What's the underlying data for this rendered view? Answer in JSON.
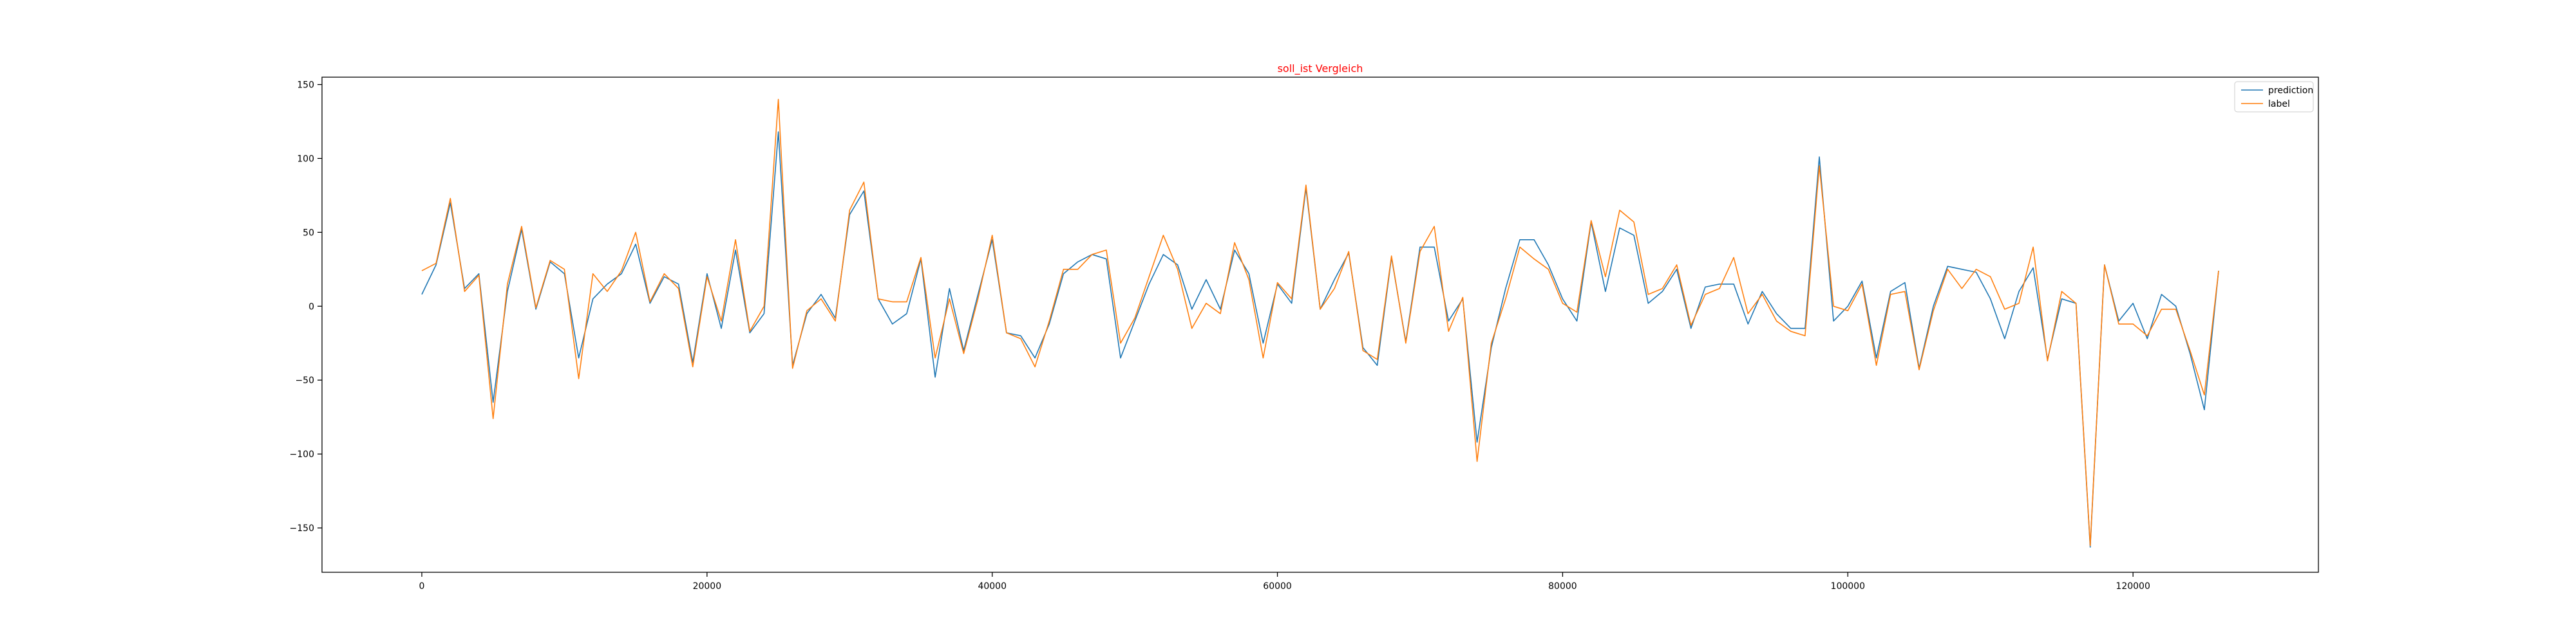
{
  "chart_data": {
    "type": "line",
    "title": "soll_ist Vergleich",
    "title_color": "#ff0000",
    "xlabel": "",
    "ylabel": "",
    "xlim": [
      -7000,
      133000
    ],
    "ylim": [
      -180,
      155
    ],
    "xticks": [
      0,
      20000,
      40000,
      60000,
      80000,
      100000,
      120000
    ],
    "xtick_labels": [
      "0",
      "20000",
      "40000",
      "60000",
      "80000",
      "100000",
      "120000"
    ],
    "yticks": [
      150,
      100,
      50,
      0,
      -50,
      -100,
      -150
    ],
    "ytick_labels": [
      "150",
      "100",
      "50",
      "0",
      "−50",
      "−100",
      "−150"
    ],
    "grid": false,
    "legend_position": "top-right",
    "x_start": 0,
    "x_step": 1000,
    "series": [
      {
        "name": "prediction",
        "color": "#1f77b4",
        "values": [
          8,
          28,
          70,
          12,
          22,
          -65,
          10,
          52,
          -2,
          30,
          22,
          -35,
          5,
          15,
          22,
          42,
          2,
          20,
          15,
          -38,
          22,
          -15,
          38,
          -18,
          -5,
          118,
          -40,
          -5,
          8,
          -8,
          62,
          78,
          5,
          -12,
          -5,
          32,
          -48,
          12,
          -30,
          8,
          45,
          -18,
          -20,
          -35,
          -12,
          22,
          30,
          35,
          32,
          -35,
          -10,
          15,
          35,
          28,
          -2,
          18,
          -2,
          38,
          22,
          -25,
          15,
          2,
          80,
          -2,
          18,
          36,
          -28,
          -40,
          33,
          -24,
          40,
          40,
          -10,
          5,
          -92,
          -28,
          12,
          45,
          45,
          28,
          5,
          -10,
          57,
          10,
          53,
          48,
          2,
          10,
          25,
          -15,
          13,
          15,
          15,
          -12,
          10,
          -5,
          -15,
          -15,
          101,
          -10,
          0,
          17,
          -35,
          10,
          16,
          -42,
          0,
          27,
          25,
          23,
          5,
          -22,
          10,
          26,
          -36,
          5,
          2,
          -163,
          28,
          -10,
          2,
          -22,
          8,
          0,
          -32,
          -70,
          24
        ]
      },
      {
        "name": "label",
        "color": "#ff7f0e",
        "values": [
          24,
          29,
          73,
          10,
          21,
          -76,
          15,
          54,
          -1,
          31,
          25,
          -49,
          22,
          10,
          24,
          50,
          3,
          22,
          12,
          -41,
          20,
          -10,
          45,
          -17,
          0,
          140,
          -42,
          -3,
          5,
          -10,
          65,
          84,
          5,
          3,
          3,
          33,
          -35,
          5,
          -32,
          5,
          48,
          -18,
          -22,
          -41,
          -10,
          25,
          25,
          35,
          38,
          -25,
          -8,
          20,
          48,
          25,
          -15,
          2,
          -5,
          43,
          18,
          -35,
          16,
          5,
          82,
          -2,
          12,
          37,
          -30,
          -36,
          34,
          -25,
          37,
          54,
          -17,
          6,
          -105,
          -25,
          5,
          40,
          32,
          25,
          2,
          -4,
          58,
          20,
          65,
          57,
          8,
          12,
          28,
          -13,
          8,
          12,
          33,
          -5,
          8,
          -10,
          -17,
          -20,
          95,
          0,
          -3,
          15,
          -40,
          8,
          10,
          -43,
          -3,
          25,
          12,
          25,
          20,
          -2,
          2,
          40,
          -37,
          10,
          2,
          -162,
          28,
          -12,
          -12,
          -20,
          -2,
          -2,
          -30,
          -60,
          24
        ]
      }
    ]
  }
}
